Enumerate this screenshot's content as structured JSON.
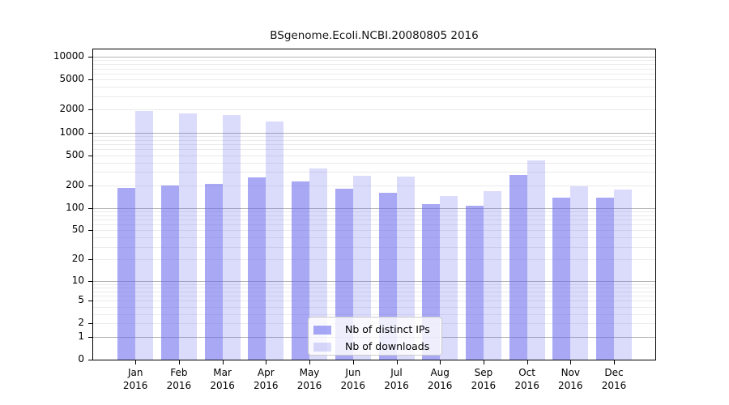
{
  "chart_data": {
    "type": "bar",
    "title": "BSgenome.Ecoli.NCBI.20080805 2016",
    "categories": [
      "Jan",
      "Feb",
      "Mar",
      "Apr",
      "May",
      "Jun",
      "Jul",
      "Aug",
      "Sep",
      "Oct",
      "Nov",
      "Dec"
    ],
    "year_label": "2016",
    "series": [
      {
        "name": "Nb of distinct IPs",
        "color": "rgba(102,102,238,0.57)",
        "values": [
          185,
          200,
          210,
          255,
          225,
          178,
          157,
          113,
          108,
          275,
          138,
          136
        ]
      },
      {
        "name": "Nb of downloads",
        "color": "rgba(102,102,238,0.235)",
        "values": [
          1930,
          1780,
          1710,
          1380,
          330,
          268,
          258,
          145,
          165,
          430,
          196,
          174
        ]
      }
    ],
    "yscale": "log1p",
    "yticks": [
      0,
      1,
      2,
      5,
      10,
      20,
      50,
      100,
      200,
      500,
      1000,
      2000,
      5000,
      10000
    ],
    "ylim": [
      0,
      12500
    ],
    "grid": {
      "major_color": "#b4b4b4",
      "minor_color": "#ebebeb",
      "major_at": [
        1,
        10,
        100,
        1000,
        10000
      ]
    },
    "legend": {
      "position": "bottom-center"
    }
  }
}
